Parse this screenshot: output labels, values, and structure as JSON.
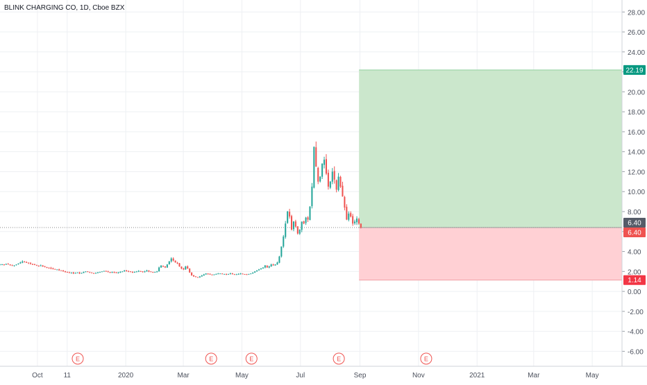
{
  "chart_data": {
    "type": "candlestick",
    "title": "BLINK CHARGING CO, 1D, Cboe BZX",
    "ylim": [
      -7.5,
      29.2
    ],
    "x_tick_labels": [
      "Oct",
      "11",
      "2020",
      "Mar",
      "May",
      "Jul",
      "Sep",
      "Nov",
      "2021",
      "Mar",
      "May"
    ],
    "x_tick_dates": [
      "2019-10-01",
      "2019-11-01",
      "2020-01-01",
      "2020-03-01",
      "2020-05-01",
      "2020-07-01",
      "2020-09-01",
      "2020-11-01",
      "2021-01-01",
      "2021-03-01",
      "2021-05-01"
    ],
    "x_range": [
      "2019-08-23",
      "2021-06-01"
    ],
    "y_ticks": [
      28,
      26,
      24,
      22,
      20,
      18,
      16,
      14,
      12,
      10,
      8,
      6,
      4,
      2,
      0,
      -2,
      -4,
      -6
    ],
    "y_tick_labels": [
      "28.00",
      "26.00",
      "24.00",
      "22.00",
      "20.00",
      "18.00",
      "16.00",
      "14.00",
      "12.00",
      "10.00",
      "8.00",
      "6.00",
      "4.00",
      "2.00",
      "0.00",
      "-2.00",
      "-4.00",
      "-6.00"
    ],
    "price_series": {
      "start_date": "2019-08-23",
      "end_date": "2020-09-02",
      "close": [
        2.7,
        2.72,
        2.68,
        2.75,
        2.7,
        2.65,
        2.6,
        2.62,
        2.7,
        2.8,
        2.9,
        3.0,
        2.95,
        2.9,
        2.85,
        2.75,
        2.7,
        2.65,
        2.6,
        2.55,
        2.6,
        2.5,
        2.45,
        2.4,
        2.35,
        2.3,
        2.25,
        2.2,
        2.2,
        2.1,
        2.1,
        2.0,
        1.95,
        1.9,
        1.85,
        1.9,
        1.8,
        1.85,
        1.9,
        1.8,
        1.85,
        1.95,
        2.0,
        1.95,
        1.9,
        1.85,
        1.8,
        1.85,
        1.9,
        1.95,
        2.0,
        2.05,
        2.0,
        1.95,
        1.9,
        1.95,
        1.9,
        1.85,
        1.9,
        1.95,
        2.0,
        2.1,
        2.05,
        2.0,
        1.95,
        1.9,
        1.95,
        2.0,
        2.05,
        2.0,
        1.95,
        2.0,
        2.1,
        2.0,
        1.95,
        1.9,
        1.95,
        2.0,
        2.4,
        2.6,
        2.5,
        2.4,
        2.7,
        3.0,
        3.3,
        3.1,
        2.9,
        2.8,
        2.5,
        2.3,
        2.2,
        2.5,
        2.3,
        1.9,
        1.6,
        1.5,
        1.45,
        1.4,
        1.5,
        1.6,
        1.7,
        1.8,
        1.75,
        1.7,
        1.65,
        1.7,
        1.75,
        1.8,
        1.8,
        1.75,
        1.75,
        1.7,
        1.75,
        1.8,
        1.75,
        1.7,
        1.72,
        1.75,
        1.8,
        1.75,
        1.72,
        1.7,
        1.75,
        1.8,
        1.9,
        2.0,
        2.1,
        2.2,
        2.3,
        2.4,
        2.6,
        2.4,
        2.5,
        2.7,
        2.6,
        2.7,
        2.9,
        3.5,
        4.5,
        5.5,
        6.8,
        8.0,
        7.5,
        6.2,
        7.0,
        6.5,
        5.8,
        6.2,
        7.0,
        6.8,
        7.4,
        7.2,
        8.5,
        10.5,
        14.5,
        12.5,
        11.0,
        11.5,
        12.8,
        13.2,
        11.8,
        10.5,
        11.0,
        12.0,
        11.2,
        10.2,
        11.5,
        10.5,
        9.5,
        8.4,
        7.2,
        7.8,
        7.5,
        6.8,
        7.0,
        7.3,
        6.8,
        6.4
      ]
    },
    "position": {
      "type": "long",
      "entry": 6.4,
      "target": 22.19,
      "stop": 1.14,
      "start_date": "2020-08-31",
      "end_date": "2021-06-01",
      "profit_color": "#c8e6c9",
      "loss_color": "#ffcdd2"
    },
    "price_labels": [
      {
        "value": 22.19,
        "text": "22.19",
        "color": "#089981"
      },
      {
        "value": 6.4,
        "text": "6.40",
        "color": "#555c68"
      },
      {
        "value": 6.4,
        "text": "6.40",
        "color": "#ef5350"
      },
      {
        "value": 1.14,
        "text": "1.14",
        "color": "#f23645"
      }
    ],
    "earnings_marker_label": "E",
    "earnings_dates": [
      "2019-11-12",
      "2020-03-30",
      "2020-05-11",
      "2020-08-10",
      "2020-11-09"
    ],
    "colors": {
      "up": "#26a69a",
      "down": "#ef5350",
      "grid": "#eef0f3",
      "axis_text": "#4a4f5b",
      "last_price_line": "#8a8a8a"
    }
  }
}
